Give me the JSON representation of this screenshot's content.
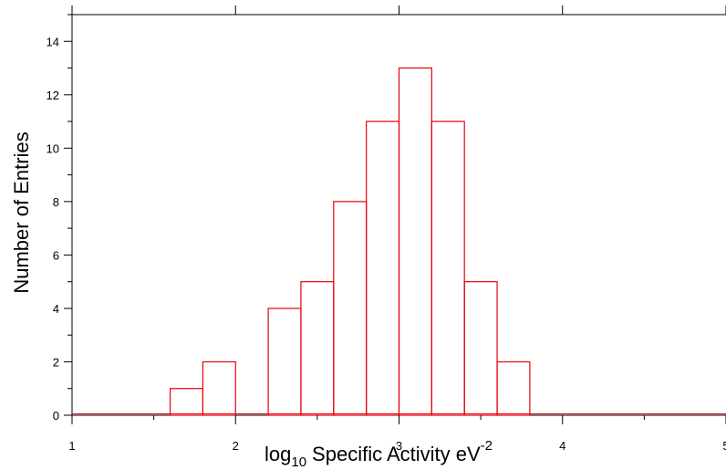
{
  "chart_data": {
    "type": "bar",
    "histogram": true,
    "bin_edges": [
      1.6,
      1.8,
      2.0,
      2.2,
      2.4,
      2.6,
      2.8,
      3.0,
      3.2,
      3.4,
      3.6,
      3.8
    ],
    "values": [
      1,
      2,
      0,
      4,
      5,
      8,
      11,
      13,
      11,
      5,
      2
    ],
    "xlim": [
      1,
      5
    ],
    "ylim": [
      0,
      15
    ],
    "x_ticks": [
      "1",
      "2",
      "3",
      "4",
      "5"
    ],
    "y_ticks": [
      "0",
      "2",
      "4",
      "6",
      "8",
      "10",
      "12",
      "14"
    ],
    "xlabel": {
      "part1": "log",
      "subscript": "10",
      "part2": "Specific Activity eV",
      "superscript": "-2"
    },
    "ylabel": "Number of Entries",
    "series_color": "#e8000b",
    "grid": false,
    "legend": "none"
  }
}
